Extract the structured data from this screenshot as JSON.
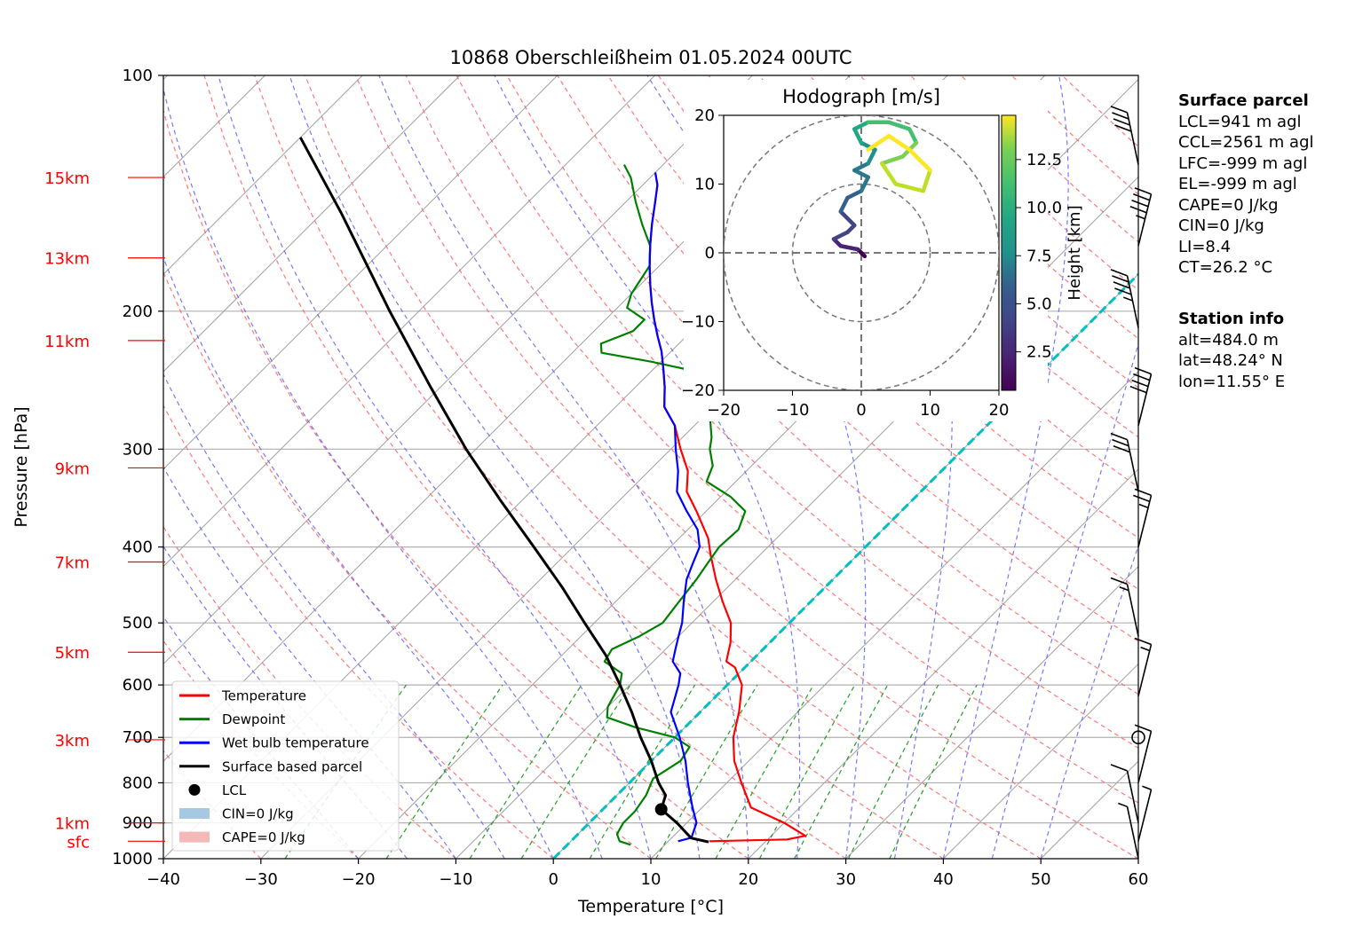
{
  "title": "10868 Oberschleißheim 01.05.2024 00UTC",
  "chart_data": {
    "type": "skew-t",
    "xlabel": "Temperature [°C]",
    "ylabel": "Pressure [hPa]",
    "xlim": [
      -40,
      60
    ],
    "ylim": [
      1000,
      100
    ],
    "xticks": [
      "−40",
      "−30",
      "−20",
      "−10",
      "0",
      "10",
      "20",
      "30",
      "40",
      "50",
      "60"
    ],
    "yticks": [
      "100",
      "200",
      "300",
      "400",
      "500",
      "600",
      "700",
      "800",
      "900",
      "1000"
    ],
    "height_labels": [
      {
        "label": "15km",
        "p": 135
      },
      {
        "label": "13km",
        "p": 171
      },
      {
        "label": "11km",
        "p": 218
      },
      {
        "label": "9km",
        "p": 317
      },
      {
        "label": "7km",
        "p": 418
      },
      {
        "label": "5km",
        "p": 545
      },
      {
        "label": "3km",
        "p": 705
      },
      {
        "label": "1km",
        "p": 900
      },
      {
        "label": "sfc",
        "p": 950
      }
    ],
    "series": [
      {
        "name": "Temperature",
        "color": "#ff0000",
        "points": [
          [
            950,
            14.2
          ],
          [
            945,
            22
          ],
          [
            935,
            23.5
          ],
          [
            900,
            20
          ],
          [
            860,
            15
          ],
          [
            800,
            11.5
          ],
          [
            750,
            8.5
          ],
          [
            700,
            6
          ],
          [
            650,
            4
          ],
          [
            600,
            1.5
          ],
          [
            570,
            -1
          ],
          [
            560,
            -2.5
          ],
          [
            550,
            -3
          ],
          [
            530,
            -4
          ],
          [
            500,
            -6
          ],
          [
            470,
            -9
          ],
          [
            440,
            -12
          ],
          [
            410,
            -15
          ],
          [
            390,
            -17
          ],
          [
            360,
            -21
          ],
          [
            340,
            -24
          ],
          [
            320,
            -26
          ],
          [
            300,
            -29
          ],
          [
            280,
            -32
          ],
          [
            265,
            -35
          ],
          [
            250,
            -37
          ],
          [
            237,
            -39
          ],
          [
            225,
            -41
          ],
          [
            215,
            -43
          ],
          [
            205,
            -45
          ],
          [
            195,
            -47
          ],
          [
            185,
            -49
          ],
          [
            175,
            -51
          ],
          [
            165,
            -53
          ],
          [
            155,
            -55
          ],
          [
            145,
            -57
          ],
          [
            138,
            -58.5
          ],
          [
            133,
            -60
          ]
        ]
      },
      {
        "name": "Dewpoint",
        "color": "#008000",
        "points": [
          [
            960,
            6.5
          ],
          [
            950,
            5
          ],
          [
            930,
            4
          ],
          [
            900,
            3.5
          ],
          [
            870,
            3.5
          ],
          [
            830,
            3
          ],
          [
            790,
            2
          ],
          [
            750,
            3
          ],
          [
            720,
            2.5
          ],
          [
            700,
            0
          ],
          [
            680,
            -5
          ],
          [
            660,
            -9
          ],
          [
            640,
            -10
          ],
          [
            620,
            -10.5
          ],
          [
            600,
            -11
          ],
          [
            580,
            -12
          ],
          [
            560,
            -15
          ],
          [
            540,
            -15.5
          ],
          [
            520,
            -14
          ],
          [
            500,
            -13
          ],
          [
            470,
            -13.5
          ],
          [
            440,
            -14
          ],
          [
            420,
            -14.5
          ],
          [
            400,
            -15
          ],
          [
            380,
            -14.8
          ],
          [
            360,
            -16
          ],
          [
            345,
            -19
          ],
          [
            330,
            -23
          ],
          [
            315,
            -24
          ],
          [
            300,
            -26
          ],
          [
            290,
            -27
          ],
          [
            275,
            -29
          ],
          [
            265,
            -30
          ],
          [
            255,
            -31.5
          ],
          [
            245,
            -32
          ],
          [
            238,
            -36
          ],
          [
            232,
            -41
          ],
          [
            226,
            -47
          ],
          [
            220,
            -48
          ],
          [
            212,
            -46
          ],
          [
            205,
            -46
          ],
          [
            198,
            -49
          ],
          [
            190,
            -50
          ],
          [
            175,
            -51
          ],
          [
            165,
            -53
          ],
          [
            155,
            -56
          ],
          [
            145,
            -59
          ],
          [
            135,
            -62
          ],
          [
            130,
            -64
          ]
        ]
      },
      {
        "name": "Wet bulb temperature",
        "color": "#0000ff",
        "points": [
          [
            950,
            11
          ],
          [
            940,
            12
          ],
          [
            900,
            11
          ],
          [
            860,
            9
          ],
          [
            800,
            6
          ],
          [
            750,
            3.5
          ],
          [
            700,
            0.5
          ],
          [
            650,
            -3
          ],
          [
            600,
            -5
          ],
          [
            580,
            -6
          ],
          [
            560,
            -8
          ],
          [
            540,
            -9
          ],
          [
            520,
            -10
          ],
          [
            500,
            -11
          ],
          [
            470,
            -13
          ],
          [
            440,
            -15
          ],
          [
            420,
            -16
          ],
          [
            400,
            -17
          ],
          [
            380,
            -19
          ],
          [
            360,
            -22
          ],
          [
            340,
            -25
          ],
          [
            320,
            -27
          ],
          [
            300,
            -29.5
          ],
          [
            280,
            -32
          ],
          [
            265,
            -35
          ],
          [
            250,
            -37
          ],
          [
            237,
            -39
          ],
          [
            225,
            -41
          ],
          [
            215,
            -43
          ],
          [
            205,
            -45
          ],
          [
            195,
            -47
          ],
          [
            185,
            -49
          ],
          [
            175,
            -51
          ],
          [
            165,
            -53
          ],
          [
            155,
            -55
          ],
          [
            145,
            -57
          ],
          [
            138,
            -58.5
          ],
          [
            133,
            -60
          ]
        ]
      },
      {
        "name": "Surface based parcel",
        "color": "#000000",
        "points": [
          [
            952,
            14.2
          ],
          [
            941,
            12
          ],
          [
            900,
            9
          ],
          [
            865,
            6
          ],
          [
            830,
            5
          ],
          [
            800,
            3
          ],
          [
            750,
            0
          ],
          [
            700,
            -3.5
          ],
          [
            650,
            -7
          ],
          [
            600,
            -11
          ],
          [
            550,
            -15.5
          ],
          [
            500,
            -21
          ],
          [
            450,
            -27
          ],
          [
            400,
            -34
          ],
          [
            350,
            -42
          ],
          [
            300,
            -51
          ],
          [
            250,
            -61
          ],
          [
            200,
            -73
          ],
          [
            150,
            -88
          ],
          [
            120,
            -100
          ]
        ]
      }
    ],
    "lcl": {
      "name": "LCL",
      "p": 865,
      "t": 6
    },
    "legend": {
      "position": "lower-left",
      "items": [
        {
          "label": "Temperature",
          "kind": "line",
          "color": "#ff0000"
        },
        {
          "label": "Dewpoint",
          "kind": "line",
          "color": "#008000"
        },
        {
          "label": "Wet bulb temperature",
          "kind": "line",
          "color": "#0000ff"
        },
        {
          "label": "Surface based parcel",
          "kind": "line",
          "color": "#000000"
        },
        {
          "label": "LCL",
          "kind": "marker",
          "color": "#000000"
        },
        {
          "label": "CIN=0 J/kg",
          "kind": "patch",
          "color": "#a6c8e0"
        },
        {
          "label": "CAPE=0 J/kg",
          "kind": "patch",
          "color": "#f5b8b8"
        }
      ]
    },
    "hodograph": {
      "title": "Hodograph [m/s]",
      "xlim": [
        -20,
        20
      ],
      "ylim": [
        -20,
        20
      ],
      "ticks": [
        "−20",
        "−10",
        "0",
        "10",
        "20"
      ],
      "colorbar_label": "Height [km]",
      "colorbar_ticks": [
        "2.5",
        "5.0",
        "7.5",
        "10.0",
        "12.5"
      ],
      "colorbar_range": [
        0.5,
        14.8
      ],
      "path": [
        [
          0.5,
          -0.5,
          0.6
        ],
        [
          -0.5,
          0.5,
          1.2
        ],
        [
          -3,
          1,
          1.8
        ],
        [
          -4,
          2,
          2.4
        ],
        [
          -2,
          3,
          3
        ],
        [
          -1,
          4,
          3.6
        ],
        [
          -3,
          6,
          4.2
        ],
        [
          -2,
          8,
          4.8
        ],
        [
          0,
          9,
          5.4
        ],
        [
          1,
          11,
          6
        ],
        [
          -1,
          12,
          6.6
        ],
        [
          1,
          13,
          7.2
        ],
        [
          2,
          15,
          7.8
        ],
        [
          0,
          16,
          8.4
        ],
        [
          -1,
          18,
          9
        ],
        [
          1,
          19,
          9.6
        ],
        [
          4,
          19,
          10.2
        ],
        [
          7,
          18,
          10.8
        ],
        [
          8,
          16,
          11.4
        ],
        [
          6,
          14,
          12
        ],
        [
          3,
          13,
          12.6
        ],
        [
          5,
          10,
          13.2
        ],
        [
          9,
          9,
          13.6
        ],
        [
          10,
          12,
          14
        ],
        [
          7,
          15,
          14.4
        ],
        [
          4,
          17,
          14.7
        ],
        [
          1,
          15,
          14.8
        ]
      ]
    },
    "wind_barbs": [
      {
        "p": 1000,
        "speed_kt": 5
      },
      {
        "p": 950,
        "speed_kt": 5
      },
      {
        "p": 900,
        "speed_kt": 10
      },
      {
        "p": 800,
        "speed_kt": 10
      },
      {
        "p": 700,
        "speed_kt": 0
      },
      {
        "p": 620,
        "speed_kt": 15
      },
      {
        "p": 520,
        "speed_kt": 15
      },
      {
        "p": 400,
        "speed_kt": 25
      },
      {
        "p": 340,
        "speed_kt": 30
      },
      {
        "p": 280,
        "speed_kt": 40
      },
      {
        "p": 210,
        "speed_kt": 45
      },
      {
        "p": 165,
        "speed_kt": 45
      },
      {
        "p": 130,
        "speed_kt": 40
      }
    ]
  },
  "surface_parcel": {
    "header": "Surface parcel",
    "lines": [
      "LCL=941 m agl",
      "CCL=2561 m agl",
      "LFC=-999 m agl",
      "EL=-999 m agl",
      "CAPE=0 J/kg",
      "CIN=0 J/kg",
      "LI=8.4",
      "CT=26.2 °C"
    ]
  },
  "station_info": {
    "header": "Station info",
    "lines": [
      "alt=484.0 m",
      "lat=48.24° N",
      "lon=11.55° E"
    ]
  }
}
